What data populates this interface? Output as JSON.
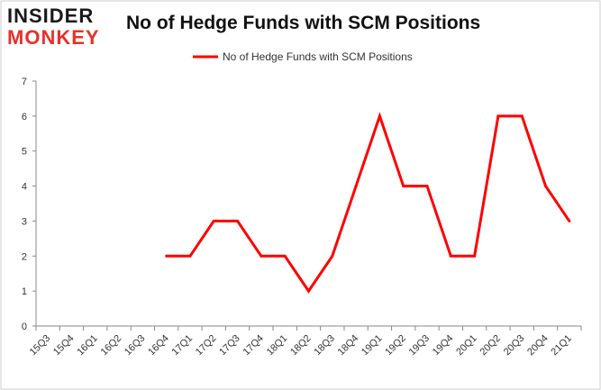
{
  "logo": {
    "line1": "INSIDER",
    "line2": "MONKEY"
  },
  "colors": {
    "series": "#ff0000",
    "axis": "#888888",
    "text": "#333333",
    "logo_accent": "#e8302a"
  },
  "chart_data": {
    "type": "line",
    "title": "No of Hedge Funds with SCM Positions",
    "xlabel": "",
    "ylabel": "",
    "ylim": [
      0,
      7
    ],
    "yticks": [
      0,
      1,
      2,
      3,
      4,
      5,
      6,
      7
    ],
    "grid": false,
    "legend_position": "top-center",
    "categories": [
      "15Q3",
      "15Q4",
      "16Q1",
      "16Q2",
      "16Q3",
      "16Q4",
      "17Q1",
      "17Q2",
      "17Q3",
      "17Q4",
      "18Q1",
      "18Q2",
      "18Q3",
      "18Q4",
      "19Q1",
      "19Q2",
      "19Q3",
      "19Q4",
      "20Q1",
      "20Q2",
      "20Q3",
      "20Q4",
      "21Q1"
    ],
    "series": [
      {
        "name": "No of Hedge Funds with SCM Positions",
        "values": [
          null,
          null,
          null,
          null,
          null,
          2,
          2,
          3,
          3,
          2,
          2,
          1,
          2,
          4,
          6,
          4,
          4,
          2,
          2,
          6,
          6,
          4,
          3
        ]
      }
    ]
  }
}
